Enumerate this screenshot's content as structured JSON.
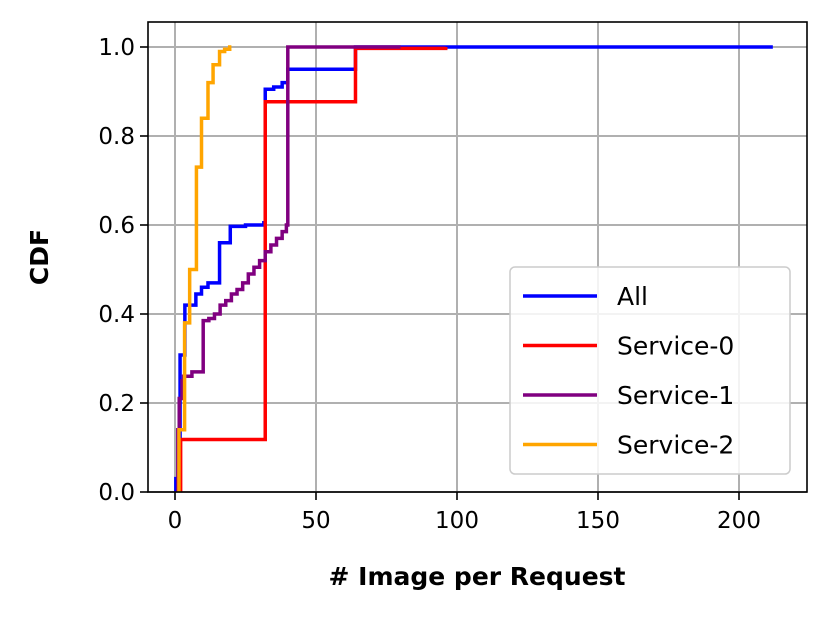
{
  "chart_data": {
    "type": "line",
    "drawstyle": "steps-post",
    "title": "",
    "xlabel": "# Image per Request",
    "ylabel": "CDF",
    "xlim": [
      -12,
      223
    ],
    "ylim": [
      0,
      1.05
    ],
    "xticks": [
      0,
      50,
      100,
      150,
      200
    ],
    "yticks": [
      0.0,
      0.2,
      0.4,
      0.6,
      0.8,
      1.0
    ],
    "ytick_labels": [
      "0.0",
      "0.2",
      "0.4",
      "0.6",
      "0.8",
      "1.0"
    ],
    "grid": true,
    "legend_position": "lower-right",
    "series": [
      {
        "name": "All",
        "color": "#0000ff",
        "points": [
          [
            0.3,
            0
          ],
          [
            0.3,
            0.03
          ],
          [
            1.8,
            0.308
          ],
          [
            3.5,
            0.42
          ],
          [
            7.4,
            0.445
          ],
          [
            9.4,
            0.46
          ],
          [
            11.7,
            0.47
          ],
          [
            15.8,
            0.56
          ],
          [
            19.6,
            0.597
          ],
          [
            25,
            0.6
          ],
          [
            31.5,
            0.605
          ],
          [
            32,
            0.905
          ],
          [
            35,
            0.91
          ],
          [
            38,
            0.92
          ],
          [
            40,
            0.95
          ],
          [
            64,
            1.0
          ],
          [
            212,
            1.0
          ]
        ]
      },
      {
        "name": "Service-0",
        "color": "#ff0000",
        "points": [
          [
            2,
            0
          ],
          [
            2,
            0.118
          ],
          [
            32,
            0.877
          ],
          [
            64,
            0.997
          ],
          [
            96,
            1.0
          ]
        ]
      },
      {
        "name": "Service-1",
        "color": "#800080",
        "points": [
          [
            1,
            0
          ],
          [
            1,
            0.14
          ],
          [
            1.5,
            0.21
          ],
          [
            2.5,
            0.25
          ],
          [
            3,
            0.26
          ],
          [
            6,
            0.27
          ],
          [
            10,
            0.385
          ],
          [
            12,
            0.39
          ],
          [
            14,
            0.4
          ],
          [
            16,
            0.42
          ],
          [
            18,
            0.43
          ],
          [
            20,
            0.445
          ],
          [
            22,
            0.455
          ],
          [
            24,
            0.47
          ],
          [
            26,
            0.49
          ],
          [
            28,
            0.505
          ],
          [
            30,
            0.52
          ],
          [
            32,
            0.54
          ],
          [
            34,
            0.555
          ],
          [
            36,
            0.57
          ],
          [
            38,
            0.585
          ],
          [
            39.5,
            0.6
          ],
          [
            40,
            1.0
          ],
          [
            80,
            1.0
          ]
        ]
      },
      {
        "name": "Service-2",
        "color": "#ffa500",
        "points": [
          [
            1.4,
            0
          ],
          [
            1.4,
            0.14
          ],
          [
            3.4,
            0.38
          ],
          [
            5.2,
            0.5
          ],
          [
            7.6,
            0.73
          ],
          [
            9.4,
            0.84
          ],
          [
            11.7,
            0.92
          ],
          [
            13.5,
            0.96
          ],
          [
            15.8,
            0.99
          ],
          [
            17.6,
            0.995
          ],
          [
            19.4,
            1.0
          ],
          [
            20,
            1.0
          ]
        ]
      }
    ]
  }
}
